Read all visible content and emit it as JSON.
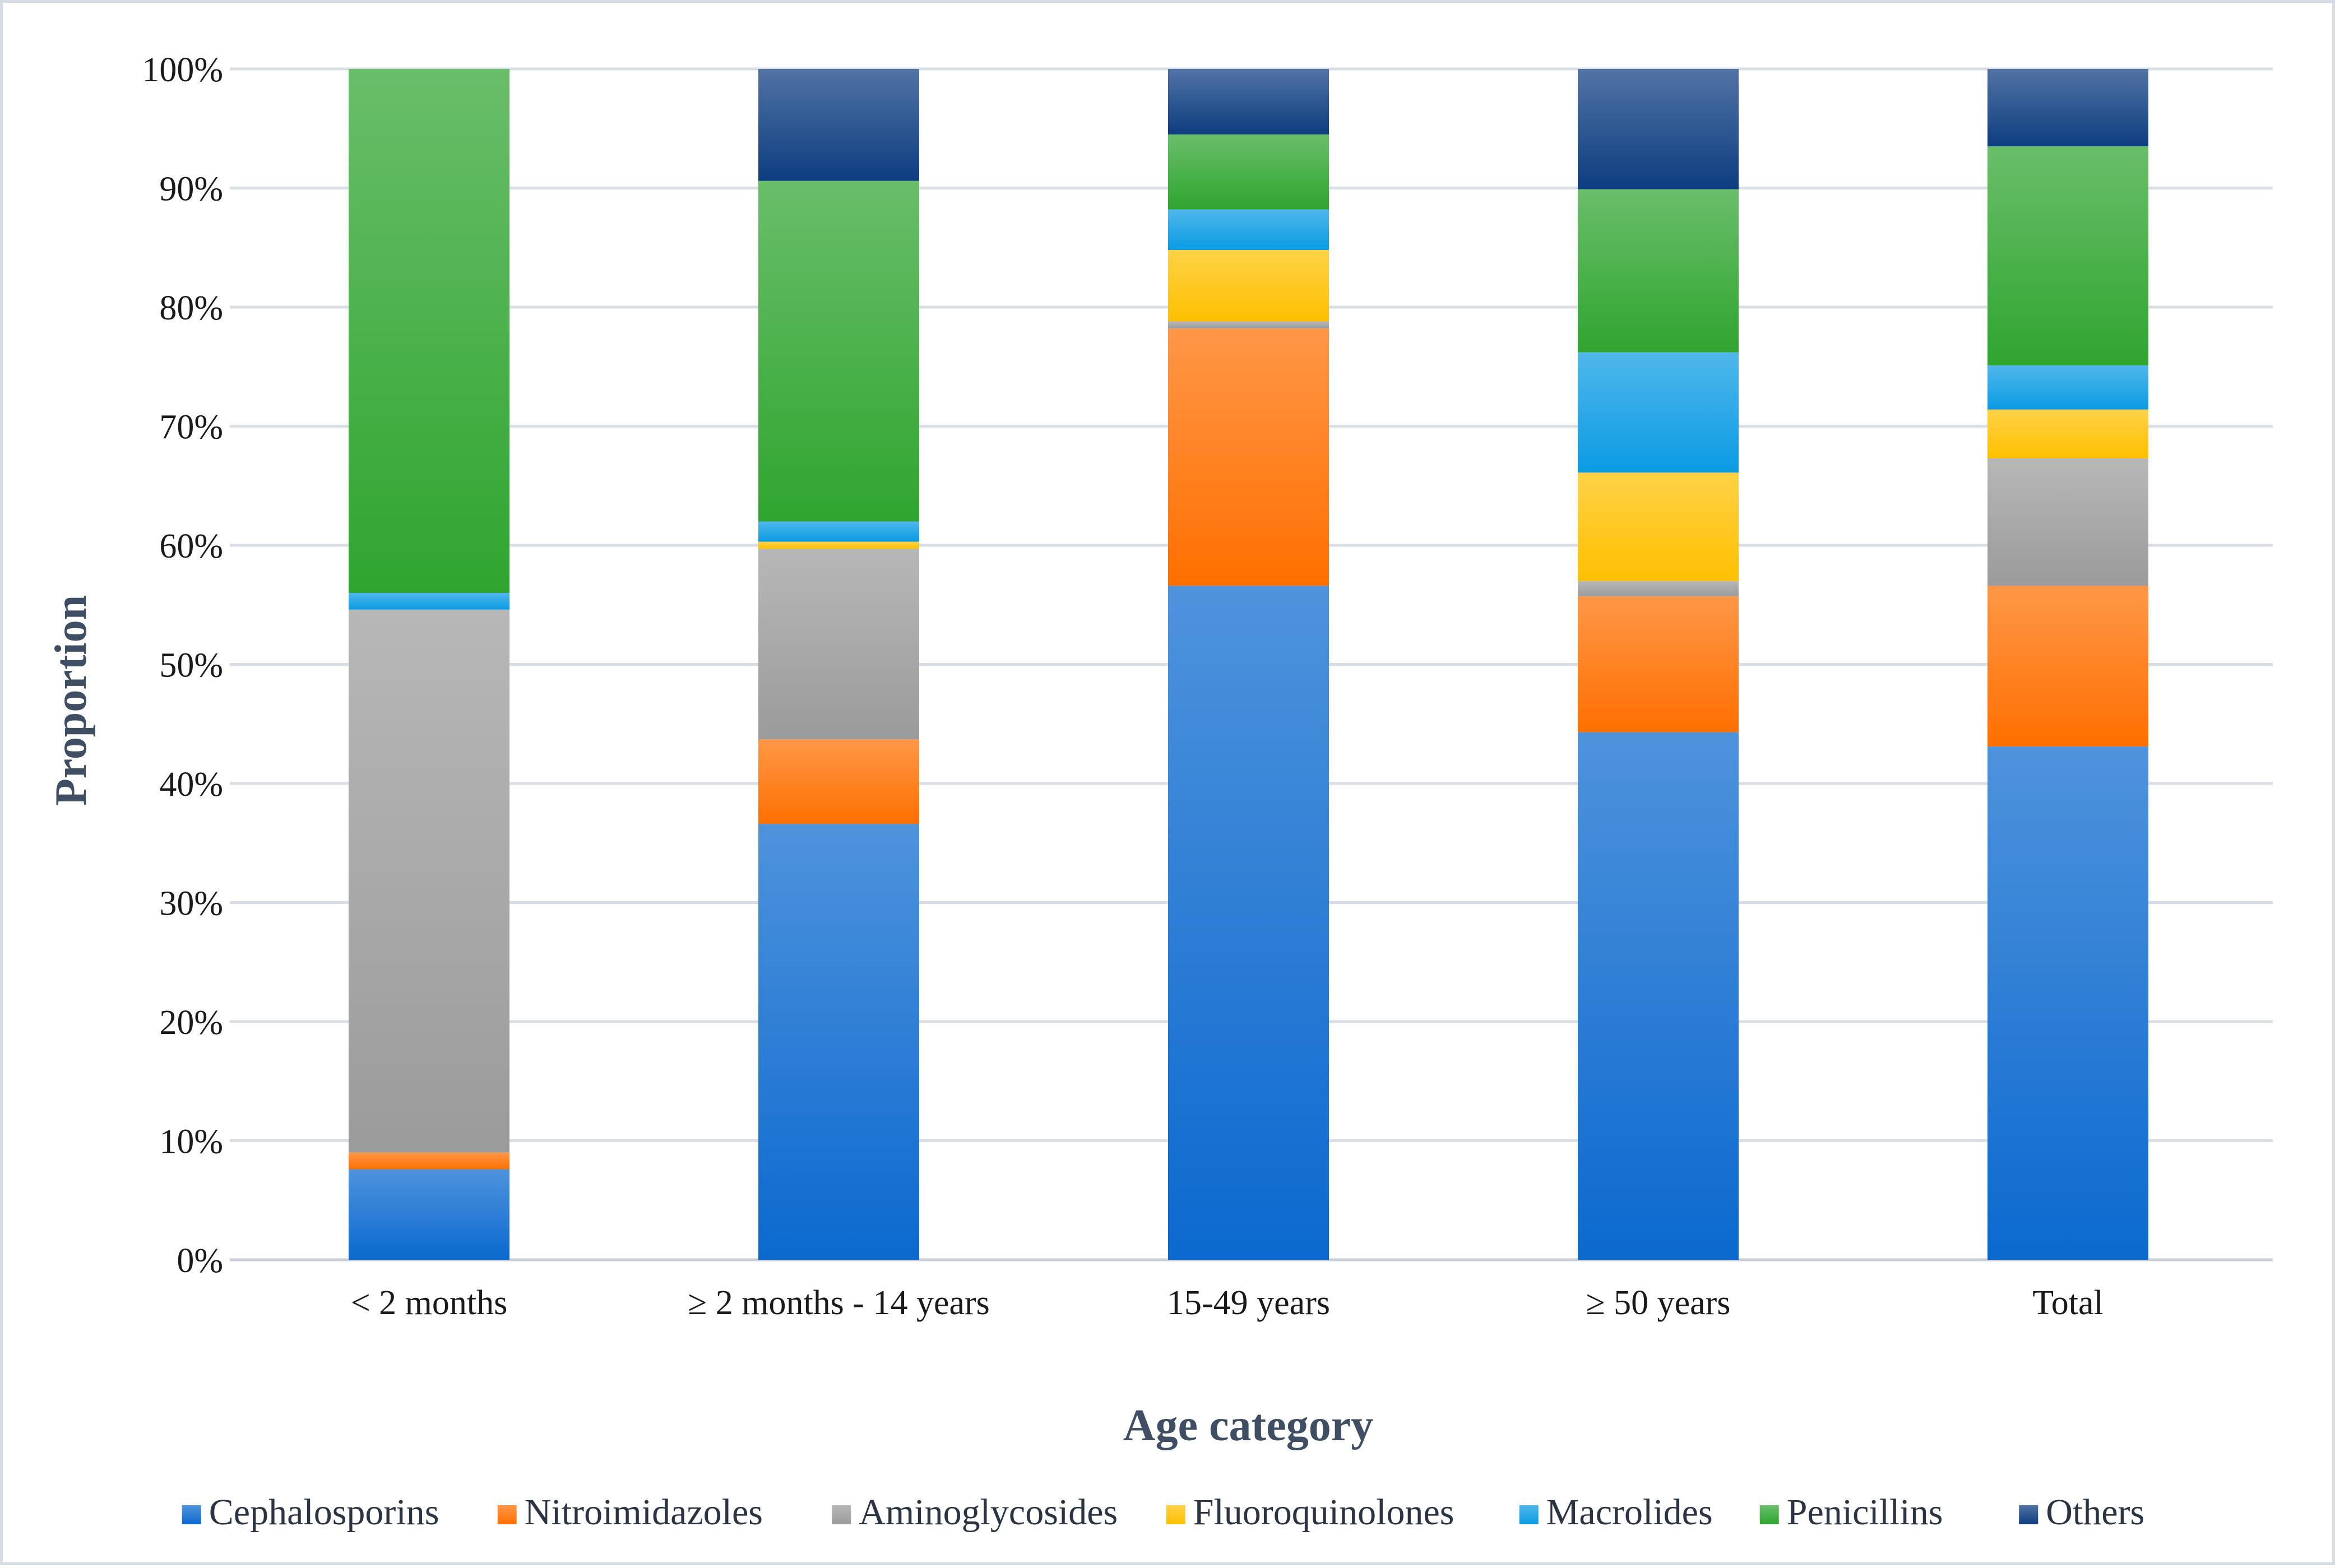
{
  "chart_data": {
    "type": "bar",
    "stacked": true,
    "title": "",
    "xlabel": "Age category",
    "ylabel": "Proportion",
    "ylim": [
      0,
      100
    ],
    "y_tick_labels": [
      "0%",
      "10%",
      "20%",
      "30%",
      "40%",
      "50%",
      "60%",
      "70%",
      "80%",
      "90%",
      "100%"
    ],
    "y_ticks": [
      0,
      10,
      20,
      30,
      40,
      50,
      60,
      70,
      80,
      90,
      100
    ],
    "categories": [
      "< 2 months",
      "≥ 2 months - 14 years",
      "15-49 years",
      "≥ 50 years",
      "Total"
    ],
    "series": [
      {
        "name": "Cephalosporins",
        "color": "#0b69cf",
        "values": [
          7.6,
          36.6,
          56.6,
          44.3,
          43.1
        ]
      },
      {
        "name": "Nitroimidazoles",
        "color": "#ff6f00",
        "values": [
          1.4,
          7.1,
          21.6,
          11.4,
          13.5
        ]
      },
      {
        "name": "Aminoglycosides",
        "color": "#9b9b9b",
        "values": [
          45.6,
          16.0,
          0.6,
          1.3,
          10.7
        ]
      },
      {
        "name": "Fluoroquinolones",
        "color": "#ffc000",
        "values": [
          0.0,
          0.6,
          6.0,
          9.1,
          4.1
        ]
      },
      {
        "name": "Macrolides",
        "color": "#0a9be3",
        "values": [
          1.4,
          1.7,
          3.4,
          10.1,
          3.7
        ]
      },
      {
        "name": "Penicillins",
        "color": "#2fa52f",
        "values": [
          44.0,
          28.6,
          6.3,
          13.7,
          18.4
        ]
      },
      {
        "name": "Others",
        "color": "#0d3d80",
        "values": [
          0.0,
          9.4,
          5.5,
          10.1,
          6.5
        ]
      }
    ],
    "legend_position": "bottom",
    "grid": true
  }
}
